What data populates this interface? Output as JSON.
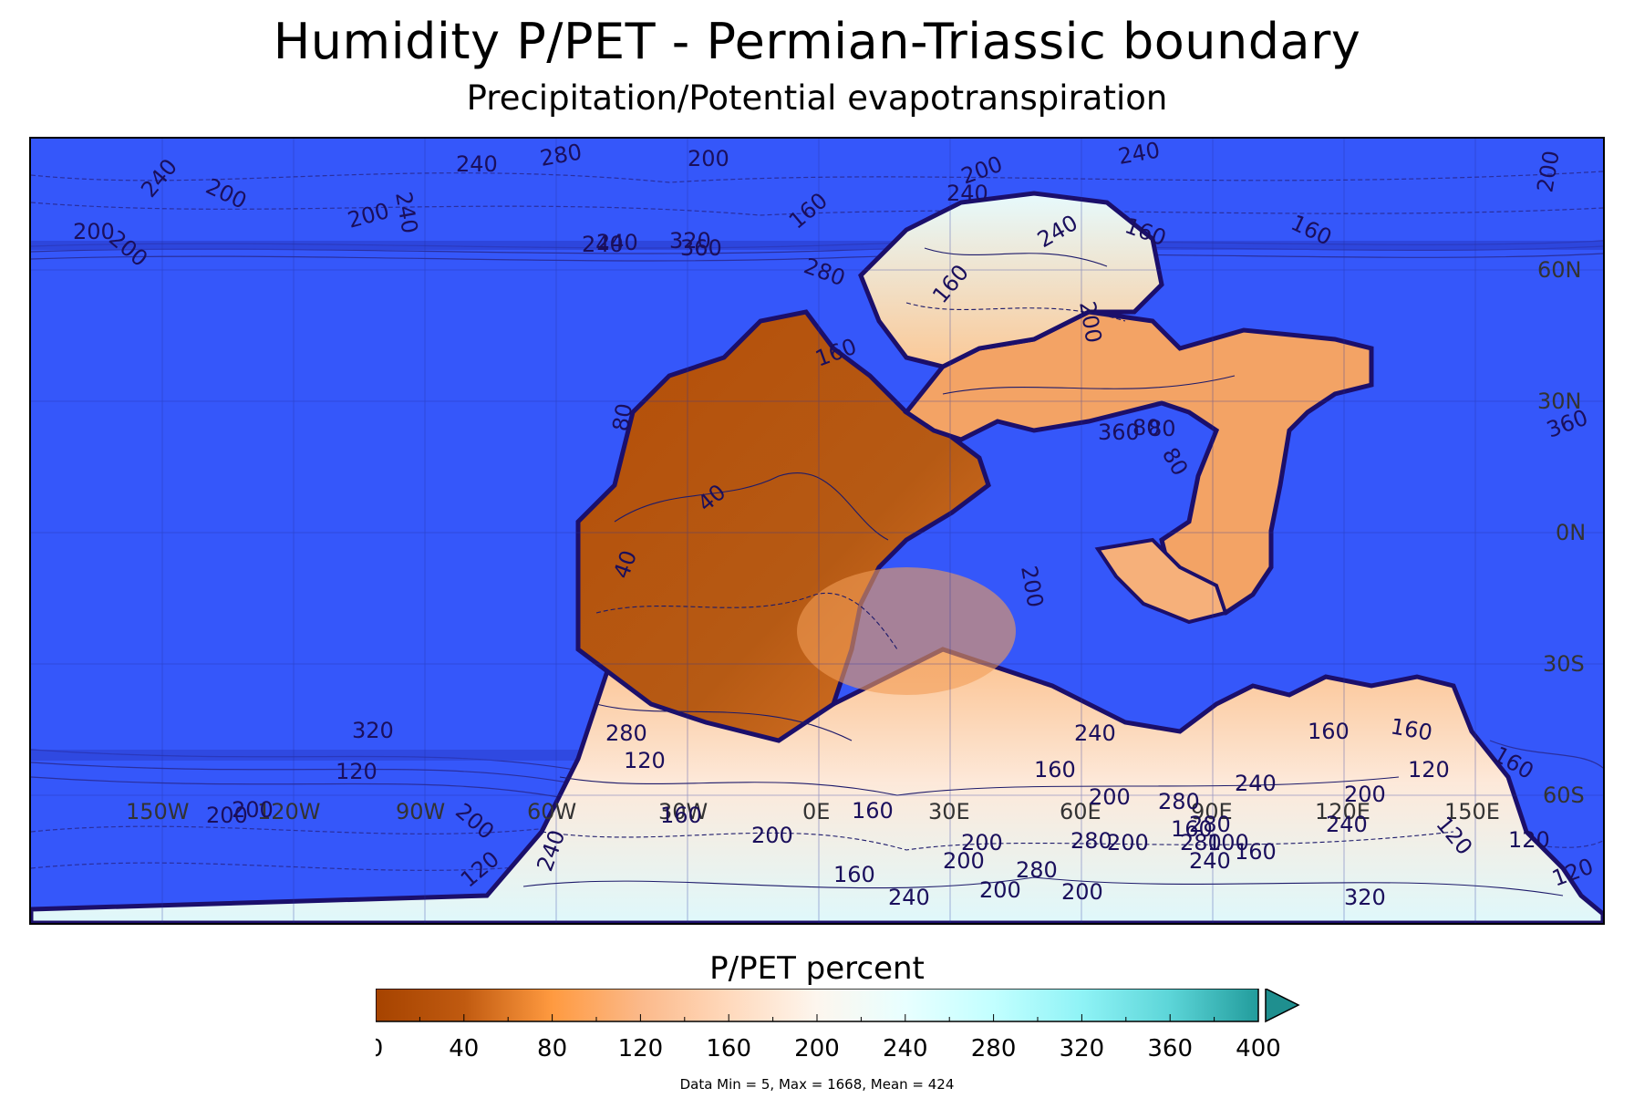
{
  "title": "Humidity P/PET - Permian-Triassic boundary",
  "subtitle": "Precipitation/Potential evapotranspiration",
  "map": {
    "ocean_color": "#3557fa",
    "lat_labels": [
      "60N",
      "30N",
      "0N",
      "30S",
      "60S"
    ],
    "lon_labels": [
      "150W",
      "120W",
      "90W",
      "60W",
      "30W",
      "0E",
      "30E",
      "60E",
      "90E",
      "120E",
      "150E"
    ],
    "contour_labels": [
      "280",
      "240",
      "240",
      "200",
      "200",
      "240",
      "200",
      "200",
      "200",
      "160",
      "160",
      "160",
      "240",
      "240",
      "200",
      "240",
      "240",
      "240",
      "320",
      "360",
      "280",
      "160",
      "160",
      "200",
      "200",
      "360",
      "80",
      "360",
      "80",
      "40",
      "40",
      "200",
      "80",
      "80",
      "320",
      "120",
      "200",
      "120",
      "200",
      "200",
      "240",
      "160",
      "200",
      "160",
      "160",
      "200",
      "280",
      "160",
      "240",
      "280",
      "280",
      "200",
      "200",
      "240",
      "280",
      "120",
      "120",
      "160",
      "160",
      "120",
      "160",
      "200",
      "240",
      "280",
      "240",
      "280",
      "120",
      "160",
      "100",
      "200",
      "200",
      "160",
      "120",
      "240",
      "200",
      "320"
    ]
  },
  "colorbar": {
    "title": "P/PET percent",
    "tick_labels": [
      "0",
      "40",
      "80",
      "120",
      "160",
      "200",
      "240",
      "280",
      "320",
      "360",
      "400"
    ],
    "colors": [
      "#a64300",
      "#c05a10",
      "#ff9a40",
      "#fbb98a",
      "#ffd9bc",
      "#fdf6ee",
      "#e8ffff",
      "#c2ffff",
      "#8ff3f6",
      "#5cd5d8",
      "#229c9c"
    ],
    "extend_color": "#1f8f8f"
  },
  "stats": "Data Min = 5, Max = 1668, Mean = 424"
}
